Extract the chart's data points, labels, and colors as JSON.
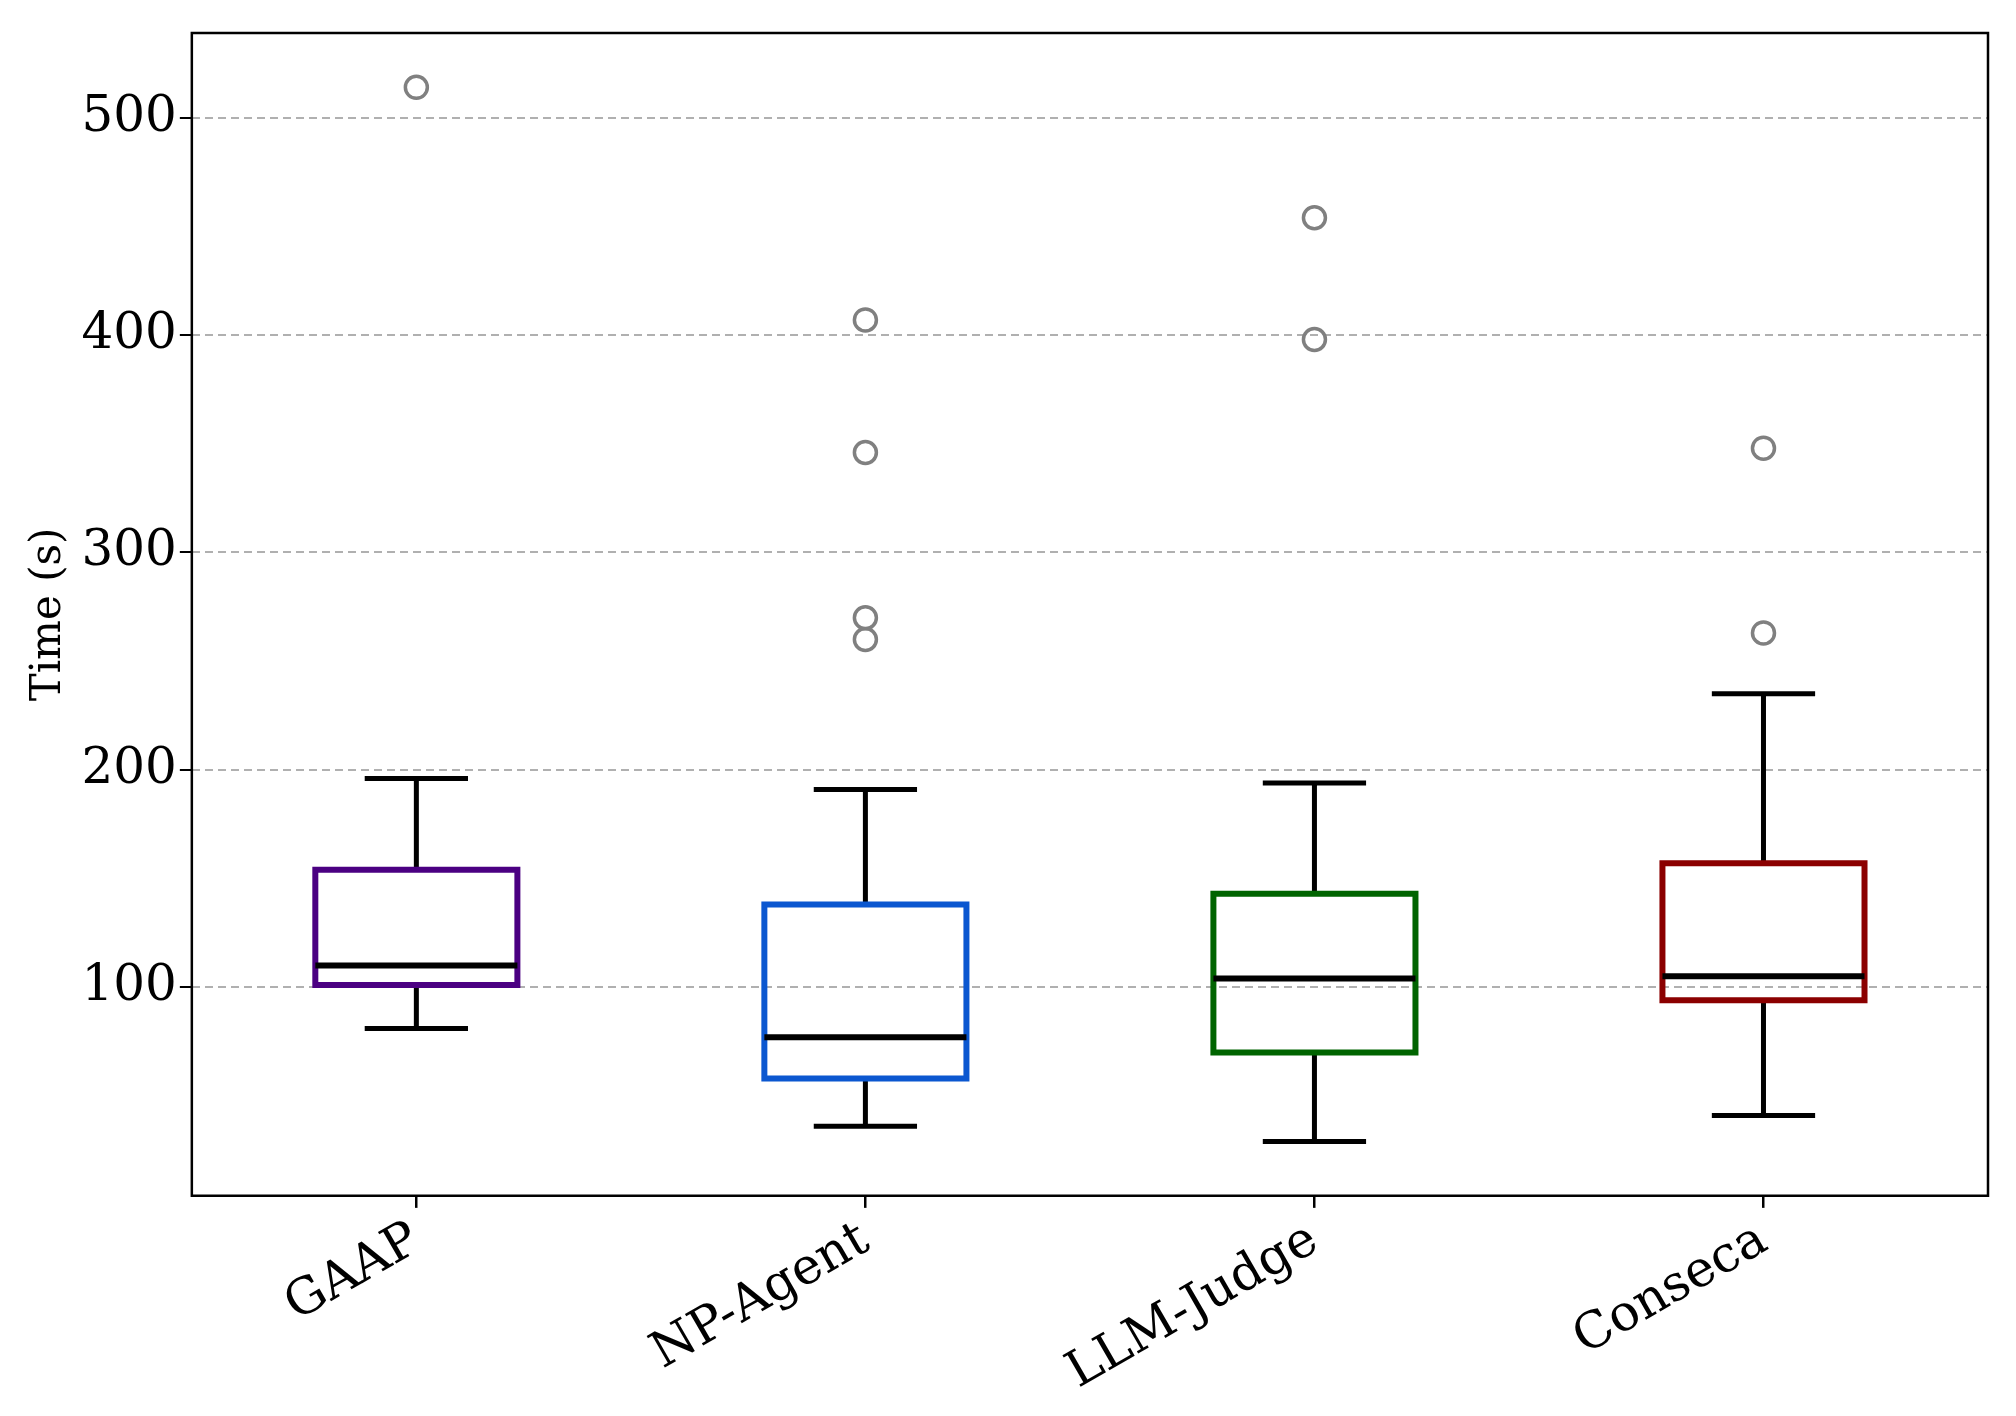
{
  "chart_data": {
    "type": "box",
    "ylabel": "Time (s)",
    "categories": [
      "GAAP",
      "NP-Agent",
      "LLM-Judge",
      "Conseca"
    ],
    "colors": [
      "#4b0082",
      "#0b57d0",
      "#006400",
      "#8b0000"
    ],
    "boxes": [
      {
        "low": 81,
        "q1": 101,
        "median": 110,
        "q3": 154,
        "high": 196,
        "outliers": [
          514
        ]
      },
      {
        "low": 36,
        "q1": 58,
        "median": 77,
        "q3": 138,
        "high": 191,
        "outliers": [
          407,
          346,
          270,
          260
        ]
      },
      {
        "low": 29,
        "q1": 70,
        "median": 104,
        "q3": 143,
        "high": 194,
        "outliers": [
          454,
          398
        ]
      },
      {
        "low": 41,
        "q1": 94,
        "median": 105,
        "q3": 157,
        "high": 235,
        "outliers": [
          348,
          263
        ]
      }
    ],
    "ylim": [
      4,
      539
    ],
    "yticks": [
      100,
      200,
      300,
      400,
      500
    ],
    "grid": "y",
    "legend": false
  }
}
